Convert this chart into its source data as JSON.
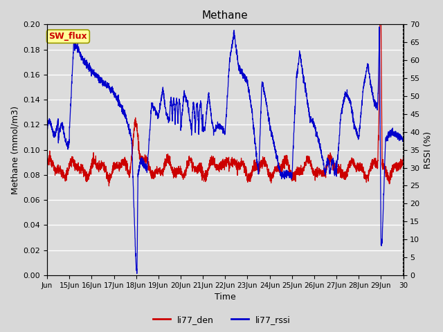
{
  "title": "Methane",
  "xlabel": "Time",
  "ylabel_left": "Methane (mmol/m3)",
  "ylabel_right": "RSSI (%)",
  "left_ylim": [
    0.0,
    0.2
  ],
  "right_ylim": [
    0,
    70
  ],
  "left_yticks": [
    0.0,
    0.02,
    0.04,
    0.06,
    0.08,
    0.1,
    0.12,
    0.14,
    0.16,
    0.18,
    0.2
  ],
  "right_yticks": [
    0,
    5,
    10,
    15,
    20,
    25,
    30,
    35,
    40,
    45,
    50,
    55,
    60,
    65,
    70
  ],
  "xtick_labels": [
    "Jun",
    "15Jun",
    "16Jun",
    "17Jun",
    "18Jun",
    "19Jun",
    "20Jun",
    "21Jun",
    "22Jun",
    "23Jun",
    "24Jun",
    "25Jun",
    "26Jun",
    "27Jun",
    "28Jun",
    "29Jun",
    "30"
  ],
  "bg_color": "#dcdcdc",
  "grid_color": "#ffffff",
  "line_den_color": "#cc0000",
  "line_rssi_color": "#0000cc",
  "legend_den": "li77_den",
  "legend_rssi": "li77_rssi",
  "sw_flux_label": "SW_flux",
  "sw_flux_bg": "#ffff99",
  "sw_flux_border": "#999900",
  "sw_flux_text_color": "#cc0000",
  "fig_facecolor": "#d8d8d8"
}
